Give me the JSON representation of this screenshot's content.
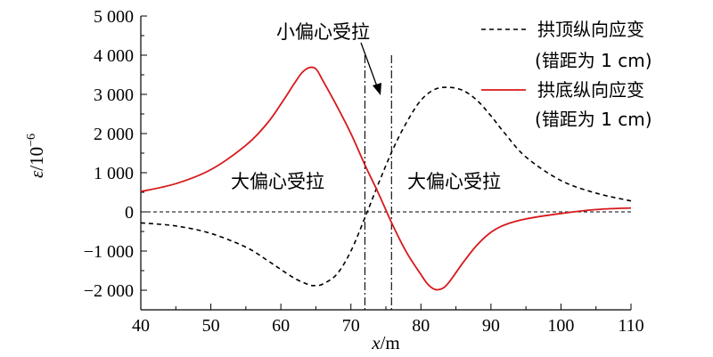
{
  "chart_data": {
    "type": "line",
    "xlabel": "x/m",
    "ylabel": "ε/10⁻⁶",
    "xlim": [
      40,
      110
    ],
    "ylim": [
      -2500,
      5000
    ],
    "x_ticks": [
      40,
      50,
      60,
      70,
      80,
      90,
      100,
      110
    ],
    "x_tick_labels": [
      "40",
      "50",
      "60",
      "70",
      "80",
      "90",
      "100",
      "110"
    ],
    "y_ticks": [
      5000,
      4000,
      3000,
      2000,
      1000,
      0,
      -1000,
      -2000
    ],
    "y_tick_labels": [
      "5 000",
      "4 000",
      "3 000",
      "2 000",
      "1 000",
      "0",
      "−1 000",
      "−2 000"
    ],
    "grid": false,
    "legend_position": "top-right",
    "series": [
      {
        "name": "拱顶纵向应变 (错距为 1 cm)",
        "line_style": "dashed",
        "color": "#000000",
        "x": [
          40,
          45,
          50,
          55,
          58,
          60,
          62,
          64,
          65,
          66,
          68,
          70,
          72,
          74,
          76,
          78,
          80,
          82,
          84,
          86,
          88,
          90,
          92,
          95,
          100,
          105,
          110
        ],
        "y": [
          -280,
          -360,
          -550,
          -900,
          -1230,
          -1470,
          -1700,
          -1860,
          -1880,
          -1840,
          -1590,
          -1000,
          -150,
          750,
          1600,
          2300,
          2850,
          3130,
          3180,
          3100,
          2850,
          2450,
          2000,
          1400,
          800,
          480,
          280
        ]
      },
      {
        "name": "拱底纵向应变 (错距为 1 cm)",
        "line_style": "solid",
        "color": "#d7191c",
        "x": [
          40,
          45,
          50,
          55,
          58,
          60,
          62,
          63,
          64,
          65,
          66,
          68,
          70,
          72,
          74,
          76,
          78,
          80,
          81,
          82,
          83,
          84,
          86,
          88,
          90,
          92,
          95,
          100,
          105,
          110
        ],
        "y": [
          520,
          720,
          1080,
          1700,
          2250,
          2750,
          3300,
          3550,
          3680,
          3650,
          3350,
          2700,
          2000,
          1200,
          450,
          -350,
          -1050,
          -1600,
          -1850,
          -1980,
          -1960,
          -1800,
          -1300,
          -850,
          -520,
          -330,
          -180,
          -40,
          60,
          100
        ]
      }
    ],
    "reference_lines": [
      {
        "orientation": "horizontal",
        "y": 0,
        "line_style": "dashed"
      },
      {
        "orientation": "vertical",
        "x": 72,
        "line_style": "dash-dot"
      },
      {
        "orientation": "vertical",
        "x": 75.8,
        "line_style": "dash-dot"
      }
    ],
    "annotations": [
      {
        "text": "小偏心受拉",
        "arrow_to_x": 74
      },
      {
        "text": "大偏心受拉",
        "region": "left"
      },
      {
        "text": "大偏心受拉",
        "region": "right"
      }
    ],
    "legend": [
      {
        "line1": "拱顶纵向应变",
        "line2": "(错距为 1 cm)"
      },
      {
        "line1": "拱底纵向应变",
        "line2": "(错距为 1 cm)"
      }
    ]
  }
}
